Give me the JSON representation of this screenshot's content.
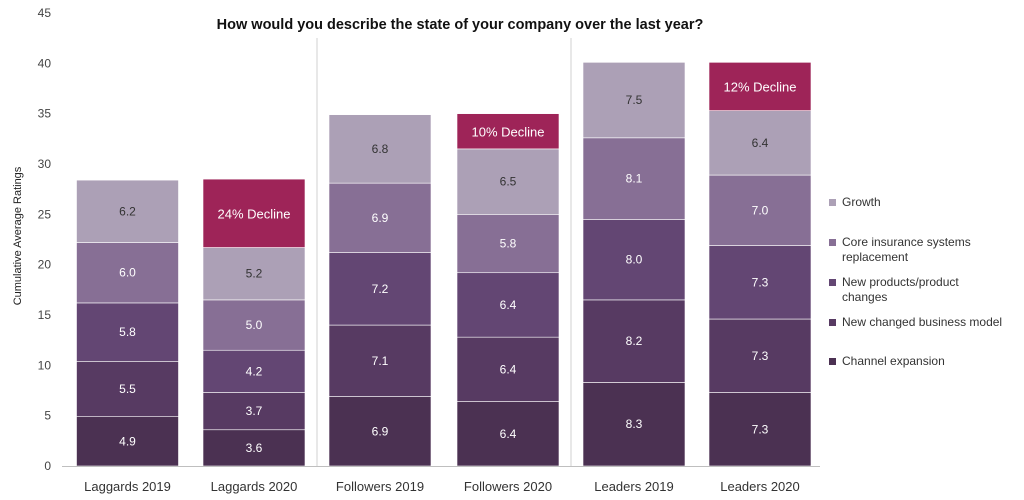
{
  "chart_data": {
    "type": "bar",
    "stacked": true,
    "title": "How would you describe the state of your company over the last year?",
    "ylabel": "Cumulative Average Ratings",
    "xlabel": "",
    "ylim": [
      0,
      45
    ],
    "yticks": [
      0,
      5,
      10,
      15,
      20,
      25,
      30,
      35,
      40,
      45
    ],
    "grid": false,
    "legend_position": "right",
    "categories": [
      "Laggards 2019",
      "Laggards 2020",
      "Followers 2019",
      "Followers 2020",
      "Leaders 2019",
      "Leaders 2020"
    ],
    "series": [
      {
        "name": "Channel expansion",
        "color": "#4b3152",
        "values": [
          4.9,
          3.6,
          6.9,
          6.4,
          8.3,
          7.3
        ],
        "labels": [
          "4.9",
          "3.6",
          "6.9",
          "6.4",
          "8.3",
          "7.3"
        ]
      },
      {
        "name": "New changed business model",
        "color": "#573a62",
        "values": [
          5.5,
          3.7,
          7.1,
          6.4,
          8.2,
          7.3
        ],
        "labels": [
          "5.5",
          "3.7",
          "7.1",
          "6.4",
          "8.2",
          "7.3"
        ]
      },
      {
        "name": "New products/product changes",
        "color": "#634673",
        "values": [
          5.8,
          4.2,
          7.2,
          6.4,
          8.0,
          7.3
        ],
        "labels": [
          "5.8",
          "4.2",
          "7.2",
          "6.4",
          "8.0",
          "7.3"
        ]
      },
      {
        "name": "Core insurance systems replacement",
        "color": "#876f95",
        "values": [
          6.0,
          5.0,
          6.9,
          5.8,
          8.1,
          7.0
        ],
        "labels": [
          "6.0",
          "5.0",
          "6.9",
          "5.8",
          "8.1",
          "7.0"
        ]
      },
      {
        "name": "Growth",
        "color": "#aca0b6",
        "values": [
          6.2,
          5.2,
          6.8,
          6.5,
          7.5,
          6.4
        ],
        "labels": [
          "6.2",
          "5.2",
          "6.8",
          "6.5",
          "7.5",
          "6.4"
        ]
      }
    ],
    "decline": {
      "color": "#9e2458",
      "categories": [
        "Laggards 2020",
        "Followers 2020",
        "Leaders 2020"
      ],
      "top_values": [
        28.5,
        35.0,
        40.1
      ],
      "labels": [
        "24% Decline",
        "10% Decline",
        "12% Decline"
      ]
    },
    "legend_order": [
      "Growth",
      "Core insurance systems replacement",
      "New products/product changes",
      "New changed business model",
      "Channel expansion"
    ],
    "legend_lines": {
      "Growth": [
        "Growth"
      ],
      "Core insurance systems replacement": [
        "Core insurance systems",
        "replacement"
      ],
      "New products/product changes": [
        "New products/product",
        "changes"
      ],
      "New changed business model": [
        "New changed business model"
      ],
      "Channel expansion": [
        "Channel expansion"
      ]
    },
    "colors": {
      "axis": "#bfbfbf",
      "separator": "#d0d0d0"
    }
  }
}
